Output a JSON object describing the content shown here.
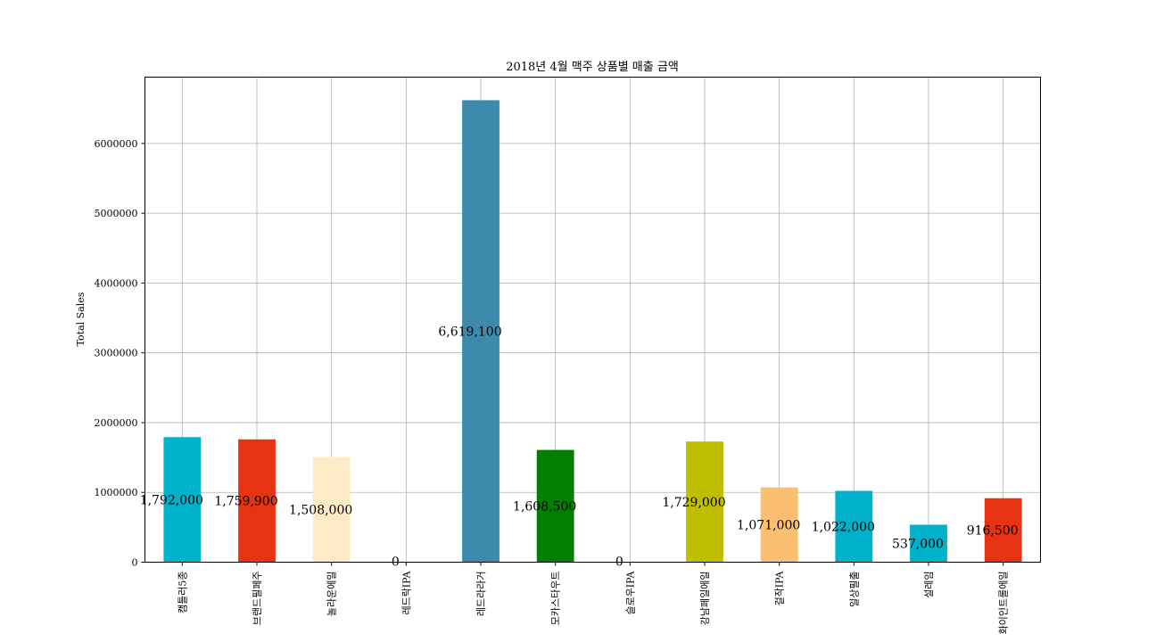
{
  "chart_data": {
    "type": "bar",
    "title": "2018년 4월 맥주 상품별 매출 금액",
    "xlabel": "",
    "ylabel": "Total Sales",
    "ylim": [
      0,
      6950000
    ],
    "yticks": [
      0,
      1000000,
      2000000,
      3000000,
      4000000,
      5000000,
      6000000
    ],
    "ytick_labels": [
      "0",
      "1000000",
      "2000000",
      "3000000",
      "4000000",
      "5000000",
      "6000000"
    ],
    "grid": true,
    "categories": [
      "캠틀러5종",
      "브랜드필페주",
      "놀라운에일",
      "레드락IPA",
      "레드라라거",
      "모카스타우트",
      "슬로우IPA",
      "강남페일에일",
      "걸작IPA",
      "일상필출",
      "설레임",
      "화이인트롤에일"
    ],
    "values": [
      1792000,
      1759900,
      1508000,
      0,
      6619100,
      1608500,
      0,
      1729000,
      1071000,
      1022000,
      537000,
      916500
    ],
    "data_labels": [
      "1,792,000",
      "1,759,900",
      "1,508,000",
      "0",
      "6,619,100",
      "1,608,500",
      "0",
      "1,729,000",
      "1,071,000",
      "1,022,000",
      "537,000",
      "916,500"
    ],
    "colors": [
      "#00b2c9",
      "#e63312",
      "#fdebc7",
      "#a9a9a9",
      "#3e8aad",
      "#007f00",
      "#a9a9a9",
      "#bfbf00",
      "#fbbf71",
      "#00b2c9",
      "#00b2c9",
      "#e63312"
    ]
  }
}
